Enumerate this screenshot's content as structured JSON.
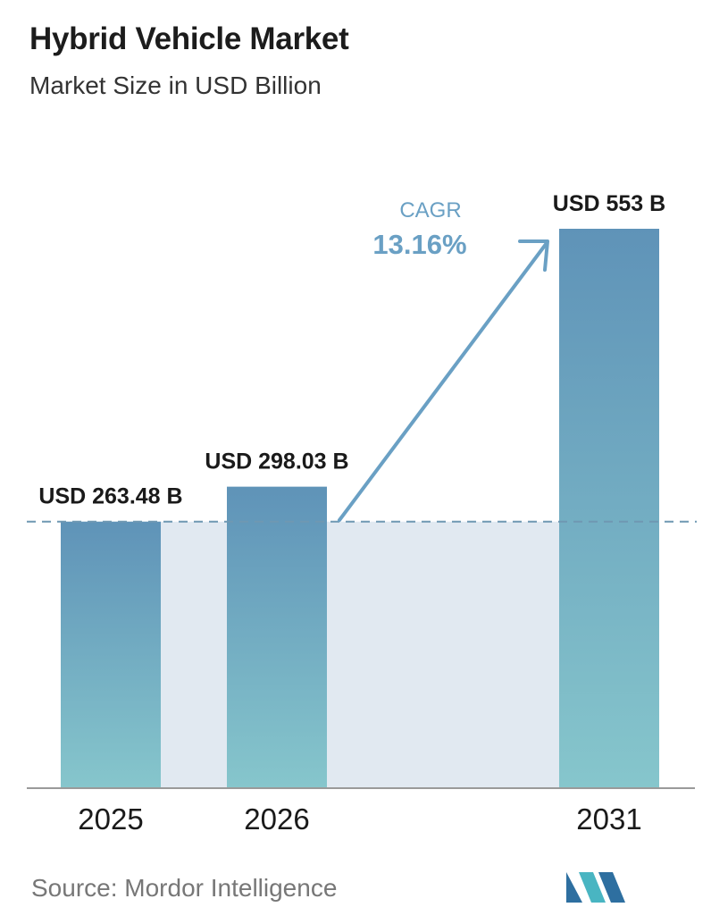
{
  "header": {
    "title": "Hybrid Vehicle Market",
    "subtitle": "Market Size in USD Billion"
  },
  "chart_data": {
    "type": "bar",
    "categories": [
      "2025",
      "2026",
      "2031"
    ],
    "values": [
      263.48,
      298.03,
      553
    ],
    "value_labels": [
      "USD 263.48 B",
      "USD 298.03 B",
      "USD 553 B"
    ],
    "title": "Hybrid Vehicle Market",
    "subtitle": "Market Size in USD Billion",
    "xlabel": "",
    "ylabel": "",
    "ylim": [
      0,
      553
    ],
    "grid": false,
    "reference_line": 263.48,
    "annotation": {
      "label": "CAGR",
      "value": "13.16%"
    },
    "colors": {
      "bar_top": "#5f93b8",
      "bar_bottom": "#86c6cc",
      "band": "#e1e9f1",
      "arrow": "#6aa0c4",
      "axis": "#9a9a9a",
      "dashed": "#6f98b2"
    }
  },
  "footer": {
    "source": "Source:  Mordor Intelligence",
    "logo_colors": [
      "#2e6fa0",
      "#49b5c2"
    ]
  }
}
